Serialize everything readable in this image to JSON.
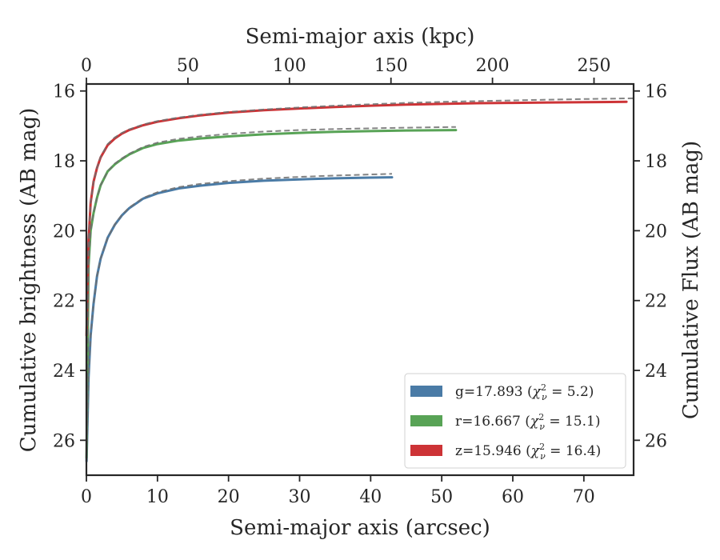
{
  "chart_data": {
    "type": "line",
    "xlabel": "Semi-major axis (arcsec)",
    "ylabel": "Cumulative brightness (AB mag)",
    "x2label": "Semi-major axis (kpc)",
    "y2label": "Cumulative Flux (AB mag)",
    "xlim": [
      0,
      77
    ],
    "ylim": [
      27,
      15.8
    ],
    "y_inverted": true,
    "x2lim": [
      0,
      269.5
    ],
    "grid": false,
    "legend_position": "bottom-right",
    "xticks": [
      0,
      10,
      20,
      30,
      40,
      50,
      60,
      70
    ],
    "yticks": [
      16,
      18,
      20,
      22,
      24,
      26
    ],
    "x2ticks": [
      0,
      50,
      100,
      150,
      200,
      250
    ],
    "series": [
      {
        "name": "g",
        "legend_value": "=17.893",
        "legend_chi": "5.2",
        "color": "#4a7ba6",
        "x": [
          0.02,
          0.3,
          0.6,
          1,
          1.5,
          2,
          3,
          4,
          5,
          6,
          8,
          10,
          13,
          16,
          20,
          25,
          30,
          35,
          40,
          43
        ],
        "y": [
          26.6,
          24.2,
          23.0,
          22.1,
          21.3,
          20.8,
          20.2,
          19.83,
          19.56,
          19.36,
          19.08,
          18.93,
          18.79,
          18.71,
          18.63,
          18.57,
          18.53,
          18.5,
          18.48,
          18.47
        ],
        "model_x": [
          0.02,
          0.3,
          0.6,
          1,
          1.5,
          2,
          3,
          4,
          5,
          6,
          8,
          10,
          13,
          16,
          20,
          25,
          30,
          35,
          40,
          43
        ],
        "model_y": [
          26.6,
          24.2,
          23.0,
          22.1,
          21.3,
          20.8,
          20.2,
          19.82,
          19.55,
          19.34,
          19.06,
          18.9,
          18.75,
          18.66,
          18.58,
          18.51,
          18.46,
          18.42,
          18.39,
          18.37
        ]
      },
      {
        "name": "r",
        "legend_value": "=16.667",
        "legend_chi": "15.1",
        "color": "#58a356",
        "x": [
          0.02,
          0.3,
          0.6,
          1,
          1.5,
          2,
          3,
          4,
          5,
          6,
          8,
          10,
          13,
          16,
          20,
          25,
          30,
          35,
          40,
          45,
          52
        ],
        "y": [
          26.5,
          21.0,
          20.0,
          19.5,
          19.05,
          18.7,
          18.3,
          18.1,
          17.95,
          17.82,
          17.63,
          17.52,
          17.42,
          17.36,
          17.3,
          17.24,
          17.2,
          17.17,
          17.15,
          17.13,
          17.12
        ],
        "model_x": [
          0.02,
          0.3,
          0.6,
          1,
          1.5,
          2,
          3,
          4,
          5,
          6,
          8,
          10,
          13,
          16,
          20,
          25,
          30,
          35,
          40,
          45,
          52
        ],
        "model_y": [
          26.5,
          21.0,
          20.0,
          19.5,
          19.05,
          18.7,
          18.3,
          18.08,
          17.93,
          17.8,
          17.6,
          17.48,
          17.37,
          17.3,
          17.23,
          17.16,
          17.12,
          17.09,
          17.07,
          17.05,
          17.03
        ]
      },
      {
        "name": "z",
        "legend_value": "=15.946",
        "legend_chi": "16.4",
        "color": "#cd3336",
        "x": [
          0.02,
          0.3,
          0.6,
          1,
          1.5,
          2,
          3,
          4,
          5,
          6,
          8,
          10,
          13,
          16,
          20,
          25,
          30,
          35,
          40,
          45,
          50,
          55,
          60,
          65,
          70,
          76
        ],
        "y": [
          23.0,
          20.3,
          19.2,
          18.6,
          18.2,
          17.9,
          17.55,
          17.36,
          17.22,
          17.12,
          16.98,
          16.88,
          16.78,
          16.7,
          16.62,
          16.55,
          16.5,
          16.46,
          16.42,
          16.39,
          16.37,
          16.35,
          16.34,
          16.33,
          16.32,
          16.31
        ],
        "model_x": [
          0.02,
          0.3,
          0.6,
          1,
          1.5,
          2,
          3,
          4,
          5,
          6,
          8,
          10,
          13,
          16,
          20,
          25,
          30,
          35,
          40,
          45,
          50,
          55,
          60,
          65,
          70,
          77
        ],
        "model_y": [
          23.0,
          20.3,
          19.2,
          18.6,
          18.2,
          17.88,
          17.52,
          17.33,
          17.2,
          17.1,
          16.96,
          16.86,
          16.76,
          16.68,
          16.6,
          16.53,
          16.47,
          16.42,
          16.38,
          16.34,
          16.31,
          16.29,
          16.27,
          16.25,
          16.23,
          16.21
        ]
      }
    ]
  }
}
